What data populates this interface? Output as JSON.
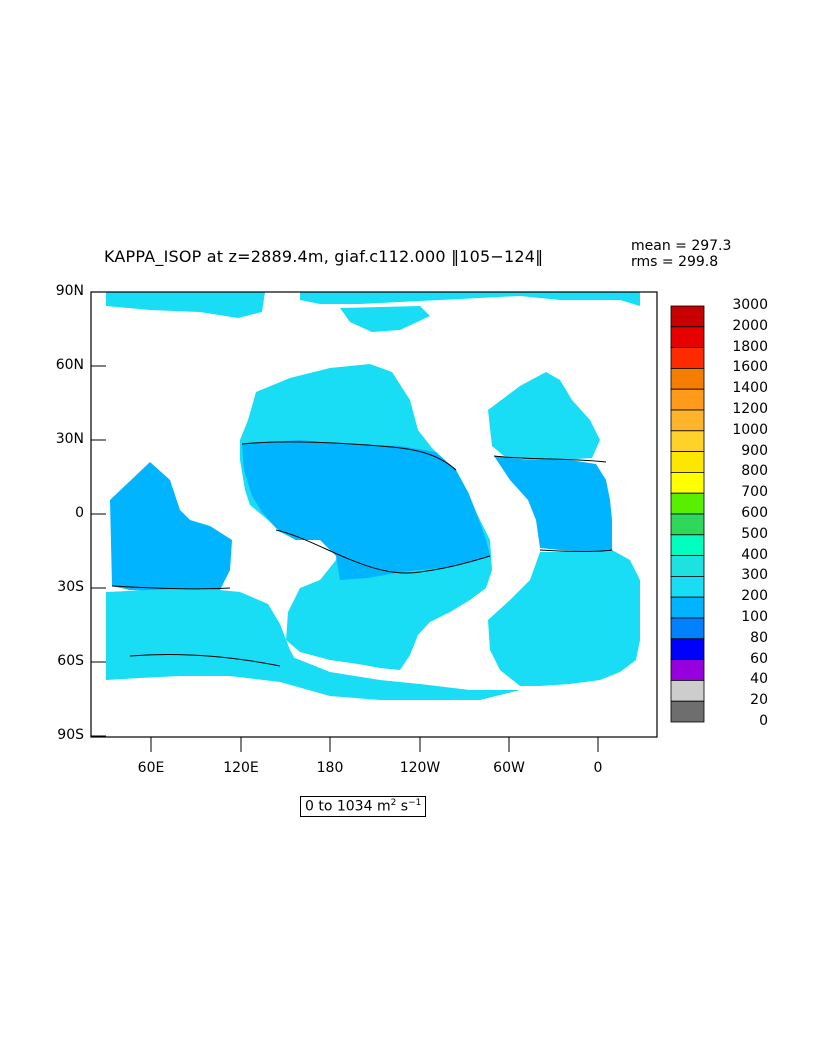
{
  "title": "KAPPA_ISOP at z=2889.4m, giaf.c112.000 ‖105−124‖",
  "stats": {
    "mean": "mean = 297.3",
    "rms": "rms = 299.8"
  },
  "range": {
    "prefix": "0 to 1034 m",
    "exp1": "2",
    "mid": " s",
    "exp2": "−1"
  },
  "y_ticks": [
    "90N",
    "60N",
    "30N",
    "0",
    "30S",
    "60S",
    "90S"
  ],
  "x_ticks": [
    "60E",
    "120E",
    "180",
    "120W",
    "60W",
    "0"
  ],
  "colorbar": {
    "levels": [
      "3000",
      "2000",
      "1800",
      "1600",
      "1400",
      "1200",
      "1000",
      "900",
      "800",
      "700",
      "600",
      "500",
      "400",
      "300",
      "200",
      "100",
      "80",
      "60",
      "40",
      "20",
      "0"
    ],
    "colors": [
      "#c80000",
      "#e60000",
      "#ff2a00",
      "#f57d00",
      "#ff9a1a",
      "#ffb42a",
      "#ffd22a",
      "#ffe600",
      "#ffff00",
      "#58ef00",
      "#2fd75a",
      "#00ffbe",
      "#1ee1e1",
      "#19dcf5",
      "#00b4ff",
      "#0082ff",
      "#0000ff",
      "#9600dc",
      "#f000dc",
      "#cdcdcd",
      "#6e6e6e"
    ]
  },
  "map_colors": {
    "ocean_300_400": "#19dcf5",
    "ocean_200_300": "#00b4ff",
    "land": "#ffffff"
  }
}
